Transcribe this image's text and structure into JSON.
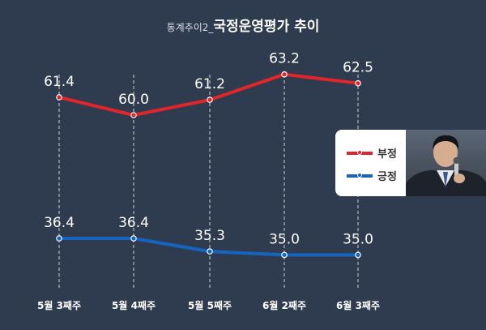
{
  "title": {
    "prefix": "통계추이2_",
    "main": "국정운영평가 추이"
  },
  "legend": {
    "items": [
      {
        "label": "부정",
        "color": "#e0262b"
      },
      {
        "label": "긍정",
        "color": "#1565c0"
      }
    ]
  },
  "colors": {
    "background": "#2f3c4f",
    "negative": "#e0262b",
    "positive": "#1565c0",
    "text": "#ffffff"
  },
  "chart_data": {
    "type": "line",
    "categories": [
      "5월 3째주",
      "5월 4째주",
      "5월 5째주",
      "6월 2째주",
      "6월 3째주"
    ],
    "series": [
      {
        "name": "부정",
        "values": [
          61.4,
          60.0,
          61.2,
          63.2,
          62.5
        ],
        "color": "#e0262b"
      },
      {
        "name": "긍정",
        "values": [
          36.4,
          36.4,
          35.3,
          35.0,
          35.0
        ],
        "color": "#1565c0"
      }
    ],
    "title": "국정운영평가 추이",
    "xlabel": "",
    "ylabel": "",
    "grid": "vertical dashed",
    "legend": "right"
  }
}
